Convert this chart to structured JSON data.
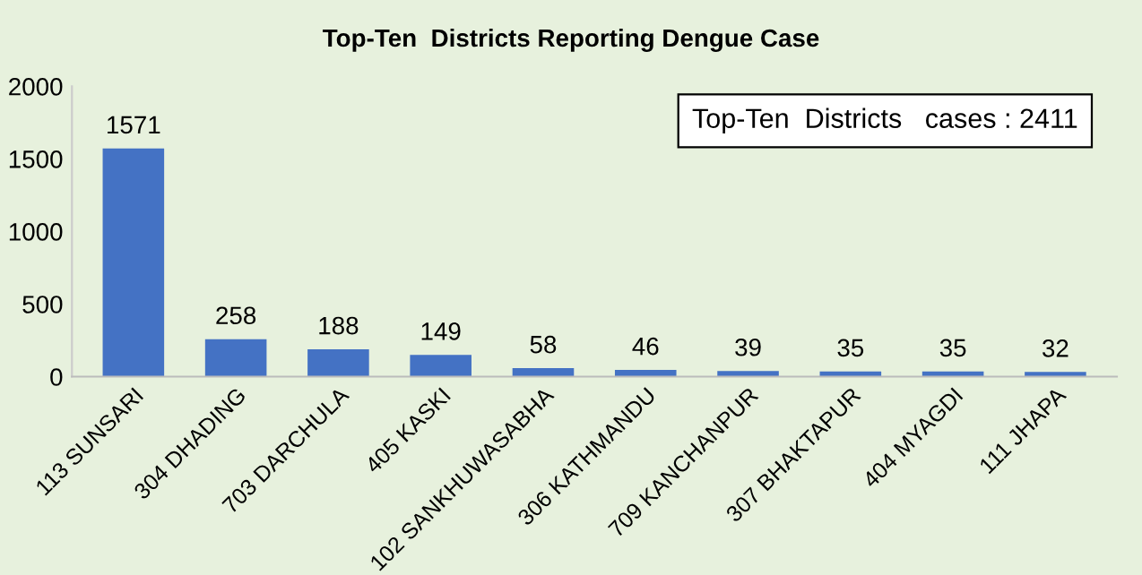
{
  "chart_data": {
    "type": "bar",
    "title": "Top-Ten  Districts Reporting Dengue Case",
    "categories": [
      "113 SUNSARI",
      "304 DHADING",
      "703 DARCHULA",
      "405 KASKI",
      "102 SANKHUWASABHA",
      "306 KATHMANDU",
      "709 KANCHANPUR",
      "307 BHAKTAPUR",
      "404 MYAGDI",
      "111 JHAPA"
    ],
    "values": [
      1571,
      258,
      188,
      149,
      58,
      46,
      39,
      35,
      35,
      32
    ],
    "color": "#4472c4",
    "ylim": [
      0,
      2000
    ],
    "yticks": [
      0,
      500,
      1000,
      1500,
      2000
    ],
    "data_labels": true,
    "grid": false,
    "annotations": [
      "Top-Ten  Districts   cases : 2411"
    ]
  }
}
